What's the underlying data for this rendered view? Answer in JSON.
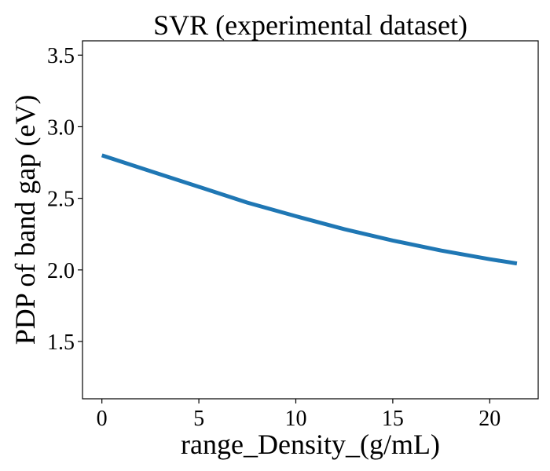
{
  "chart_data": {
    "type": "line",
    "title": "SVR (experimental dataset)",
    "xlabel": "range_Density_(g/mL)",
    "ylabel": "PDP of band gap (eV)",
    "xlim": [
      -1.0,
      22.5
    ],
    "ylim": [
      1.1,
      3.6
    ],
    "xticks": [
      0,
      5,
      10,
      15,
      20
    ],
    "yticks": [
      1.5,
      2.0,
      2.5,
      3.0,
      3.5
    ],
    "xtick_labels": [
      "0",
      "5",
      "10",
      "15",
      "20"
    ],
    "ytick_labels": [
      "1.5",
      "2.0",
      "2.5",
      "3.0",
      "3.5"
    ],
    "grid": false,
    "series": [
      {
        "color": "#1f77b4",
        "x": [
          0,
          2.5,
          5,
          7.5,
          10,
          12.5,
          15,
          17.5,
          20,
          21.4
        ],
        "y": [
          2.8,
          2.69,
          2.58,
          2.47,
          2.375,
          2.285,
          2.205,
          2.135,
          2.075,
          2.045
        ]
      }
    ]
  }
}
